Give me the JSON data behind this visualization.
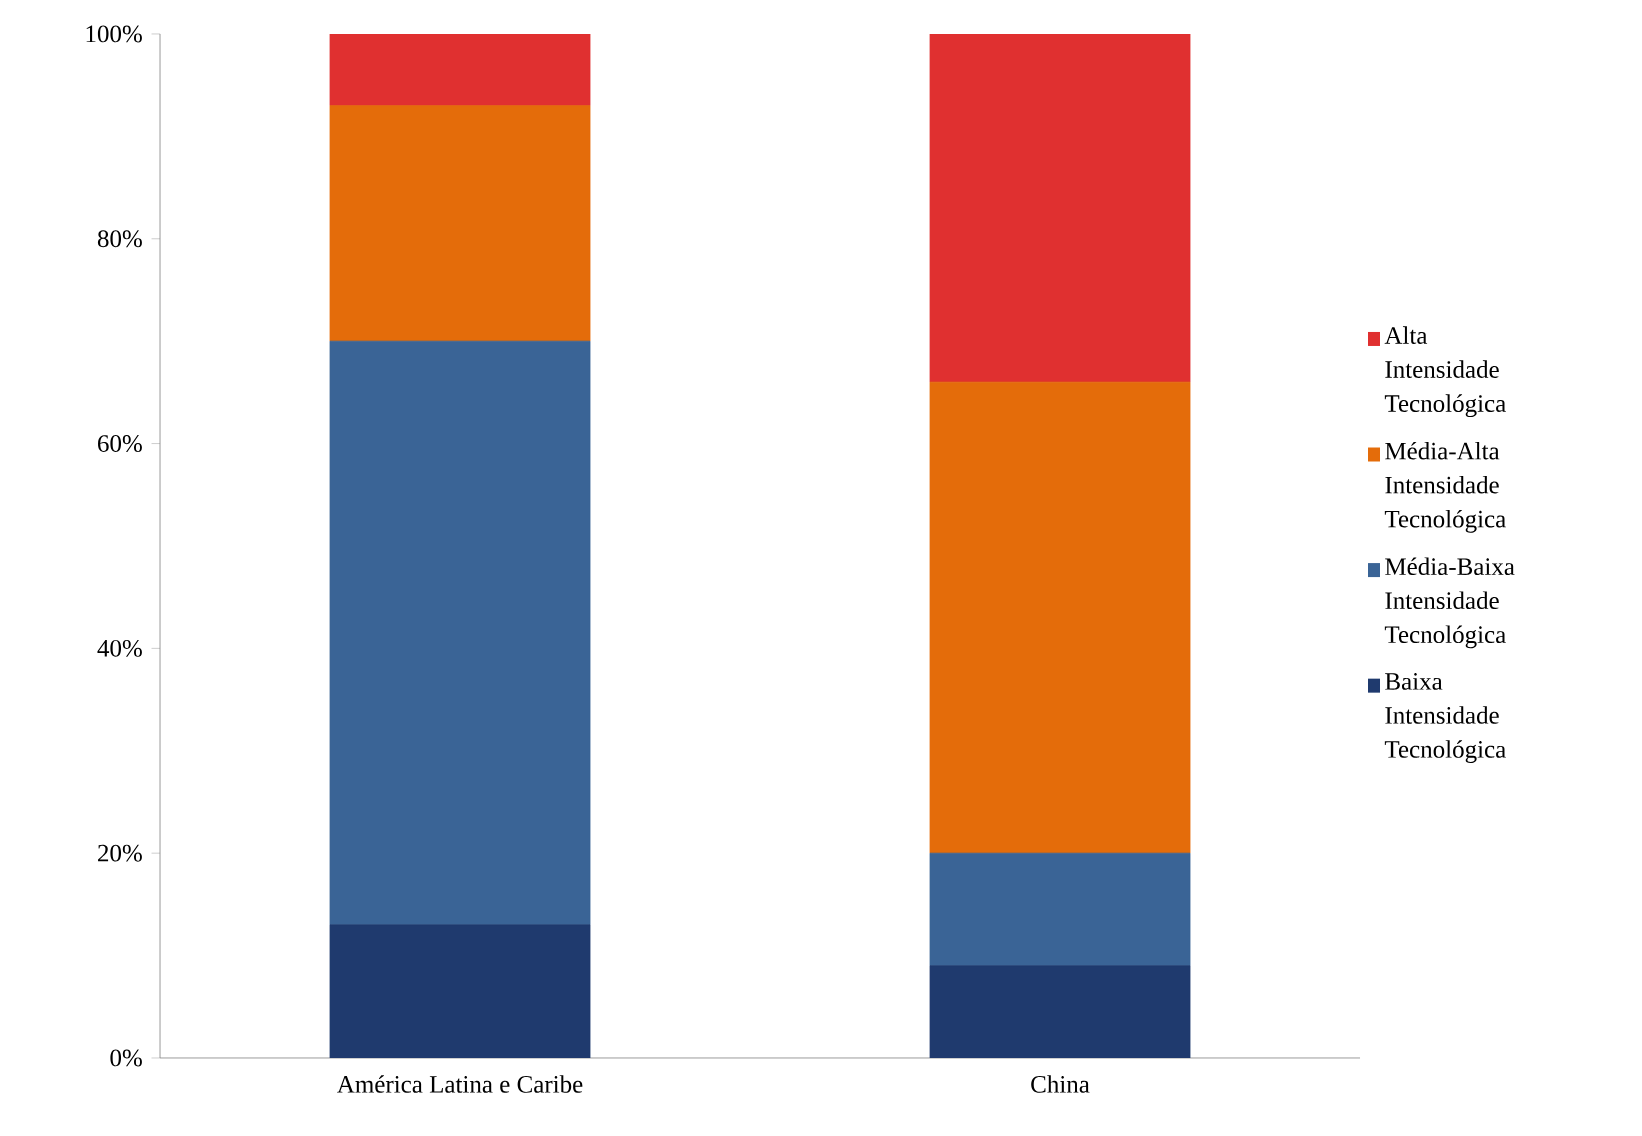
{
  "chart_data": {
    "type": "bar",
    "stacked": true,
    "categories": [
      "América Latina e Caribe",
      "China"
    ],
    "series": [
      {
        "name": "Baixa Intensidade Tecnológica",
        "color": "#1f3a6e",
        "values": [
          13,
          9
        ]
      },
      {
        "name": "Média-Baixa Intensidade Tecnológica",
        "color": "#3a6496",
        "values": [
          57,
          11
        ]
      },
      {
        "name": "Média-Alta Intensidade Tecnológica",
        "color": "#e46c0a",
        "values": [
          23,
          46
        ]
      },
      {
        "name": "Alta Intensidade Tecnológica",
        "color": "#e03030",
        "values": [
          7,
          34
        ]
      }
    ],
    "ylim": [
      0,
      100
    ],
    "yticks": [
      {
        "value": 0,
        "label": "0%"
      },
      {
        "value": 20,
        "label": "20%"
      },
      {
        "value": 40,
        "label": "40%"
      },
      {
        "value": 60,
        "label": "60%"
      },
      {
        "value": 80,
        "label": "80%"
      },
      {
        "value": 100,
        "label": "100%"
      }
    ],
    "grid": false,
    "legend": "right"
  }
}
